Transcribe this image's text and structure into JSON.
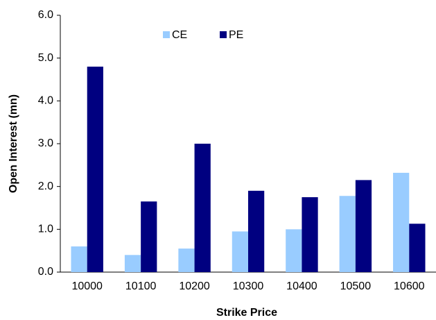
{
  "chart_data": {
    "type": "bar",
    "x_label": "Strike Price",
    "y_label": "Open Interest (mn)",
    "categories": [
      "10000",
      "10100",
      "10200",
      "10300",
      "10400",
      "10500",
      "10600"
    ],
    "series": [
      {
        "name": "CE",
        "color": "#99ccff",
        "values": [
          0.6,
          0.4,
          0.55,
          0.95,
          1.0,
          1.78,
          2.32
        ]
      },
      {
        "name": "PE",
        "color": "#000080",
        "values": [
          4.8,
          1.65,
          3.0,
          1.9,
          1.75,
          2.15,
          1.13
        ]
      }
    ],
    "ylim": [
      0,
      6
    ],
    "yticks": [
      {
        "value": 0,
        "label": "0.0"
      },
      {
        "value": 1,
        "label": "1.0"
      },
      {
        "value": 2,
        "label": "2.0"
      },
      {
        "value": 3,
        "label": "3.0"
      },
      {
        "value": 4,
        "label": "4.0"
      },
      {
        "value": 5,
        "label": "5.0"
      },
      {
        "value": 6,
        "label": "6.0"
      }
    ],
    "grid": false,
    "legend": "top"
  }
}
